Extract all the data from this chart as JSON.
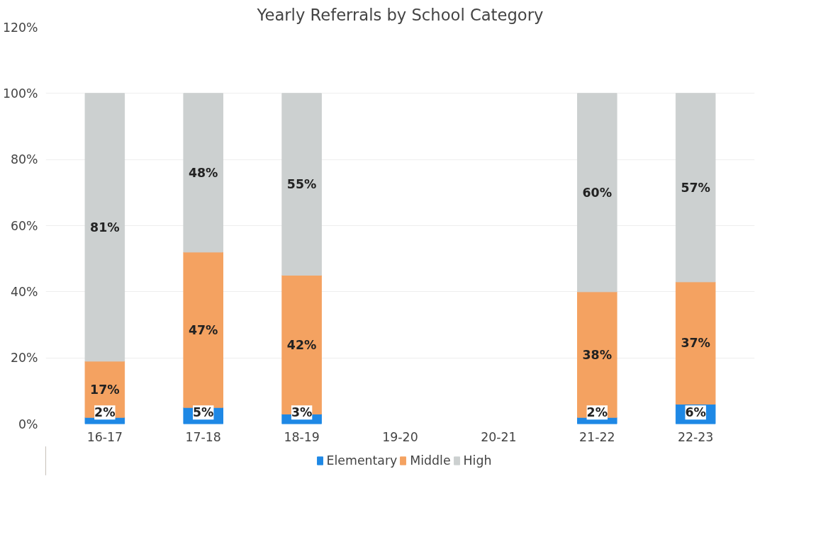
{
  "chart_data": {
    "type": "bar",
    "title": "Yearly Referrals by School Category",
    "stacked": true,
    "categories": [
      "16-17",
      "17-18",
      "18-19",
      "19-20",
      "20-21",
      "21-22",
      "22-23"
    ],
    "series": [
      {
        "name": "Elementary",
        "color": "#1e88e5",
        "values": [
          2,
          5,
          3,
          null,
          null,
          2,
          6
        ],
        "value_labels": [
          "2%",
          "5%",
          "3%",
          null,
          null,
          "2%",
          "6%"
        ]
      },
      {
        "name": "Middle",
        "color": "#f4a261",
        "values": [
          17,
          47,
          42,
          null,
          null,
          38,
          37
        ],
        "value_labels": [
          "17%",
          "47%",
          "42%",
          null,
          null,
          "38%",
          "37%"
        ]
      },
      {
        "name": "High",
        "color": "#ccd0d0",
        "values": [
          81,
          48,
          55,
          null,
          null,
          60,
          57
        ],
        "value_labels": [
          "81%",
          "48%",
          "55%",
          null,
          null,
          "60%",
          "57%"
        ]
      }
    ],
    "ylim": [
      0,
      120
    ],
    "yticks": [
      {
        "value": 0,
        "label": "0%"
      },
      {
        "value": 20,
        "label": "20%"
      },
      {
        "value": 40,
        "label": "40%"
      },
      {
        "value": 60,
        "label": "60%"
      },
      {
        "value": 80,
        "label": "80%"
      },
      {
        "value": 100,
        "label": "100%"
      },
      {
        "value": 120,
        "label": "120%"
      }
    ],
    "grid": "y",
    "legend": "bottom"
  }
}
